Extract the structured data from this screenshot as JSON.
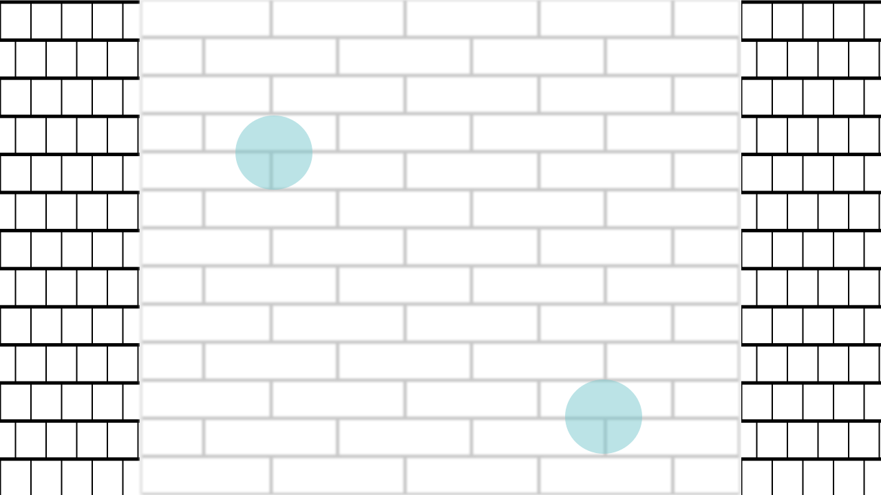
{
  "scene": {
    "description_free": true,
    "targets": [
      {
        "id": "target-1",
        "color": "#78c8cd"
      },
      {
        "id": "target-2",
        "color": "#78c8cd"
      }
    ],
    "colors": {
      "mortar_side": "#000000",
      "mortar_main": "#c8c8c8",
      "brick": "#ffffff"
    }
  }
}
